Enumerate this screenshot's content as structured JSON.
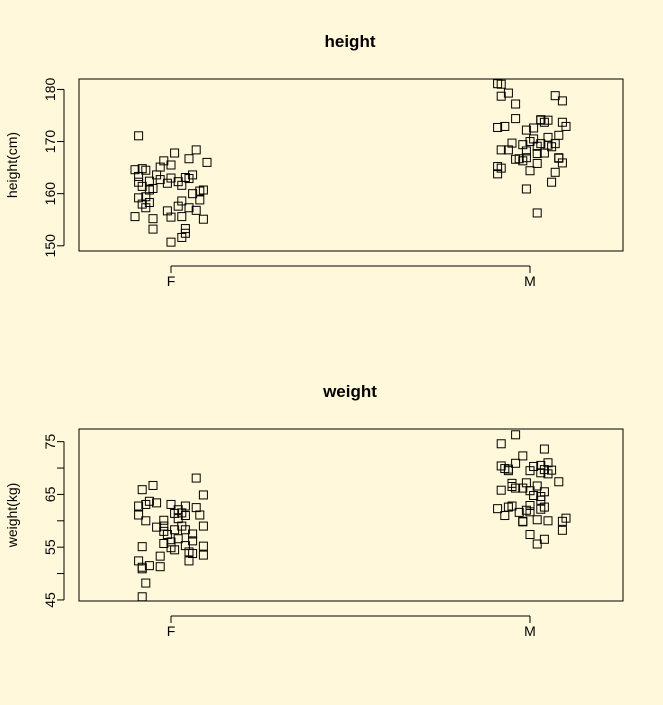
{
  "background": "#fff8da",
  "marker_color": "#000000",
  "chart_data": [
    {
      "type": "scatter",
      "title": "height",
      "xlabel": "",
      "ylabel": "height(cm)",
      "categories": [
        "F",
        "M"
      ],
      "ylim": [
        149,
        182
      ],
      "yticks": [
        150,
        160,
        170,
        180
      ],
      "grid": false,
      "legend": "none",
      "marker": "open-square",
      "series": [
        {
          "category": "F",
          "points": [
            [
              -0.09,
              171.1
            ],
            [
              0.01,
              167.8
            ],
            [
              0.1,
              166.0
            ],
            [
              0.07,
              168.4
            ],
            [
              -0.03,
              165.1
            ],
            [
              -0.07,
              164.5
            ],
            [
              0.04,
              163.1
            ],
            [
              -0.08,
              164.8
            ],
            [
              -0.1,
              164.6
            ],
            [
              -0.09,
              163.3
            ],
            [
              0.0,
              163.0
            ],
            [
              -0.04,
              163.6
            ],
            [
              -0.06,
              162.4
            ],
            [
              -0.09,
              162.2
            ],
            [
              0.05,
              162.9
            ],
            [
              -0.03,
              162.7
            ],
            [
              0.02,
              162.3
            ],
            [
              -0.01,
              162.0
            ],
            [
              0.03,
              161.6
            ],
            [
              -0.05,
              161.0
            ],
            [
              0.09,
              160.7
            ],
            [
              0.08,
              160.5
            ],
            [
              0.06,
              160.0
            ],
            [
              -0.07,
              159.4
            ],
            [
              -0.09,
              159.2
            ],
            [
              -0.06,
              158.3
            ],
            [
              0.03,
              158.6
            ],
            [
              0.08,
              158.8
            ],
            [
              -0.08,
              158.0
            ],
            [
              -0.07,
              157.3
            ],
            [
              0.07,
              156.8
            ],
            [
              0.05,
              157.3
            ],
            [
              0.02,
              157.6
            ],
            [
              -0.01,
              156.7
            ],
            [
              0.0,
              155.5
            ],
            [
              -0.05,
              155.2
            ],
            [
              0.03,
              155.6
            ],
            [
              0.09,
              155.1
            ],
            [
              -0.1,
              155.6
            ],
            [
              -0.05,
              153.2
            ],
            [
              0.04,
              153.3
            ],
            [
              0.04,
              152.4
            ],
            [
              0.03,
              151.6
            ],
            [
              0.0,
              150.7
            ],
            [
              -0.06,
              160.7
            ],
            [
              -0.08,
              161.4
            ],
            [
              0.06,
              163.6
            ],
            [
              0.0,
              165.5
            ],
            [
              0.05,
              166.7
            ],
            [
              -0.02,
              166.3
            ]
          ]
        },
        {
          "category": "M",
          "points": [
            [
              -0.09,
              181.1
            ],
            [
              -0.08,
              181.0
            ],
            [
              -0.06,
              179.3
            ],
            [
              -0.08,
              178.7
            ],
            [
              0.07,
              178.8
            ],
            [
              0.09,
              177.8
            ],
            [
              -0.04,
              177.2
            ],
            [
              -0.04,
              174.4
            ],
            [
              0.03,
              174.1
            ],
            [
              0.05,
              174.1
            ],
            [
              0.09,
              173.7
            ],
            [
              -0.07,
              172.9
            ],
            [
              -0.09,
              172.7
            ],
            [
              0.1,
              172.9
            ],
            [
              -0.01,
              172.2
            ],
            [
              0.01,
              172.6
            ],
            [
              0.03,
              174.2
            ],
            [
              0.04,
              173.7
            ],
            [
              0.08,
              171.2
            ],
            [
              -0.05,
              169.7
            ],
            [
              0.0,
              170.0
            ],
            [
              -0.02,
              169.4
            ],
            [
              0.05,
              170.8
            ],
            [
              0.01,
              170.5
            ],
            [
              0.03,
              169.6
            ],
            [
              0.07,
              169.6
            ],
            [
              0.02,
              169.1
            ],
            [
              0.05,
              169.3
            ],
            [
              0.06,
              169.0
            ],
            [
              -0.08,
              168.4
            ],
            [
              -0.06,
              168.4
            ],
            [
              -0.01,
              168.2
            ],
            [
              0.04,
              167.8
            ],
            [
              -0.01,
              166.9
            ],
            [
              -0.02,
              166.3
            ],
            [
              0.02,
              167.7
            ],
            [
              0.08,
              166.9
            ],
            [
              -0.03,
              166.7
            ],
            [
              -0.04,
              166.6
            ],
            [
              0.02,
              165.8
            ],
            [
              0.09,
              165.9
            ],
            [
              -0.08,
              164.9
            ],
            [
              0.0,
              164.4
            ],
            [
              -0.09,
              163.8
            ],
            [
              0.07,
              164.1
            ],
            [
              0.06,
              162.2
            ],
            [
              -0.01,
              160.9
            ],
            [
              0.02,
              156.3
            ],
            [
              -0.09,
              165.2
            ],
            [
              0.08,
              166.8
            ]
          ]
        }
      ]
    },
    {
      "type": "scatter",
      "title": "weight",
      "xlabel": "",
      "ylabel": "weight(kg)",
      "categories": [
        "F",
        "M"
      ],
      "ylim": [
        44.8,
        77.4
      ],
      "yticks": [
        45,
        55,
        65,
        75
      ],
      "minor_yticks": [
        50,
        60,
        70
      ],
      "grid": false,
      "legend": "none",
      "marker": "open-square",
      "series": [
        {
          "category": "F",
          "points": [
            [
              0.07,
              68.1
            ],
            [
              -0.05,
              66.7
            ],
            [
              -0.08,
              65.9
            ],
            [
              0.09,
              64.9
            ],
            [
              -0.06,
              63.7
            ],
            [
              -0.09,
              62.8
            ],
            [
              -0.07,
              63.1
            ],
            [
              0.0,
              63.1
            ],
            [
              0.04,
              62.8
            ],
            [
              0.07,
              62.5
            ],
            [
              0.02,
              62.1
            ],
            [
              0.08,
              61.1
            ],
            [
              -0.09,
              61.1
            ],
            [
              0.03,
              61.5
            ],
            [
              0.04,
              61.0
            ],
            [
              0.02,
              60.4
            ],
            [
              -0.02,
              60.1
            ],
            [
              -0.07,
              60.0
            ],
            [
              0.09,
              59.0
            ],
            [
              -0.02,
              59.0
            ],
            [
              -0.04,
              58.8
            ],
            [
              -0.02,
              58.0
            ],
            [
              0.04,
              58.3
            ],
            [
              0.01,
              58.3
            ],
            [
              0.06,
              57.5
            ],
            [
              -0.01,
              57.4
            ],
            [
              0.02,
              56.6
            ],
            [
              0.0,
              56.0
            ],
            [
              -0.02,
              55.7
            ],
            [
              0.04,
              55.3
            ],
            [
              0.09,
              55.2
            ],
            [
              -0.08,
              55.1
            ],
            [
              0.0,
              54.9
            ],
            [
              0.01,
              54.5
            ],
            [
              0.06,
              53.8
            ],
            [
              0.09,
              53.5
            ],
            [
              0.05,
              54.1
            ],
            [
              -0.03,
              53.3
            ],
            [
              0.05,
              52.4
            ],
            [
              -0.09,
              52.4
            ],
            [
              -0.06,
              51.5
            ],
            [
              -0.08,
              51.2
            ],
            [
              -0.03,
              51.3
            ],
            [
              -0.08,
              50.9
            ],
            [
              -0.07,
              48.2
            ],
            [
              -0.08,
              45.6
            ],
            [
              0.06,
              56.2
            ],
            [
              -0.04,
              63.4
            ],
            [
              0.01,
              61.4
            ],
            [
              0.03,
              59.0
            ]
          ]
        },
        {
          "category": "M",
          "points": [
            [
              -0.04,
              76.3
            ],
            [
              -0.08,
              74.6
            ],
            [
              0.04,
              73.6
            ],
            [
              -0.02,
              72.3
            ],
            [
              0.03,
              70.5
            ],
            [
              0.05,
              71.0
            ],
            [
              -0.08,
              70.4
            ],
            [
              -0.06,
              69.8
            ],
            [
              0.04,
              69.7
            ],
            [
              0.06,
              69.6
            ],
            [
              0.03,
              69.1
            ],
            [
              -0.04,
              70.9
            ],
            [
              0.08,
              67.4
            ],
            [
              -0.01,
              67.2
            ],
            [
              -0.05,
              67.1
            ],
            [
              0.02,
              66.6
            ],
            [
              -0.04,
              66.2
            ],
            [
              -0.02,
              66.2
            ],
            [
              0.0,
              65.7
            ],
            [
              0.04,
              65.5
            ],
            [
              0.01,
              64.8
            ],
            [
              -0.05,
              66.5
            ],
            [
              -0.08,
              65.8
            ],
            [
              -0.05,
              62.8
            ],
            [
              0.0,
              62.9
            ],
            [
              0.03,
              63.9
            ],
            [
              -0.06,
              62.6
            ],
            [
              -0.09,
              62.3
            ],
            [
              0.04,
              62.6
            ],
            [
              -0.03,
              61.6
            ],
            [
              0.0,
              61.7
            ],
            [
              -0.07,
              61.0
            ],
            [
              0.02,
              60.2
            ],
            [
              -0.02,
              59.8
            ],
            [
              0.05,
              60.0
            ],
            [
              0.09,
              59.9
            ],
            [
              0.1,
              60.5
            ],
            [
              -0.02,
              59.9
            ],
            [
              0.09,
              58.2
            ],
            [
              0.0,
              57.4
            ],
            [
              0.04,
              56.5
            ],
            [
              0.02,
              55.6
            ],
            [
              -0.07,
              69.9
            ],
            [
              0.05,
              68.9
            ],
            [
              0.01,
              70.3
            ],
            [
              -0.06,
              69.5
            ],
            [
              0.0,
              69.5
            ],
            [
              -0.01,
              62.0
            ],
            [
              0.03,
              62.2
            ],
            [
              0.03,
              64.6
            ]
          ]
        }
      ]
    }
  ]
}
